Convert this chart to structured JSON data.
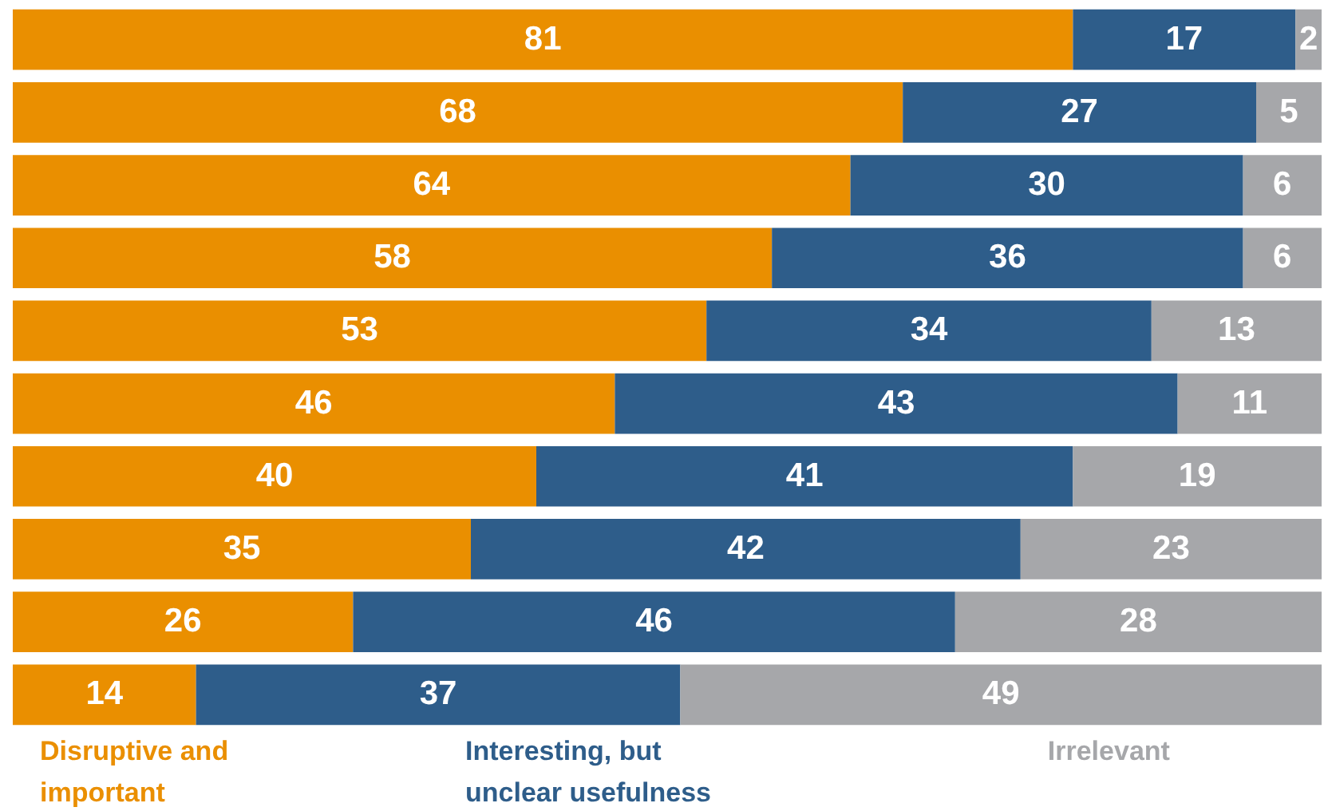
{
  "chart_data": {
    "type": "bar",
    "orientation": "horizontal",
    "stacked": true,
    "data_labels": true,
    "legend": "bottom",
    "categories": [
      null,
      null,
      null,
      null,
      null,
      null,
      null,
      null,
      null,
      null
    ],
    "series": [
      {
        "name": "Disruptive and important",
        "color": "#ea8f00",
        "values": [
          81,
          68,
          64,
          58,
          53,
          46,
          40,
          35,
          26,
          14
        ]
      },
      {
        "name": "Interesting, but unclear usefulness",
        "color": "#2e5d8a",
        "values": [
          17,
          27,
          30,
          36,
          34,
          43,
          41,
          42,
          46,
          37
        ]
      },
      {
        "name": "Irrelevant",
        "color": "#a6a7aa",
        "values": [
          2,
          5,
          6,
          6,
          13,
          11,
          19,
          23,
          28,
          49
        ]
      }
    ]
  }
}
